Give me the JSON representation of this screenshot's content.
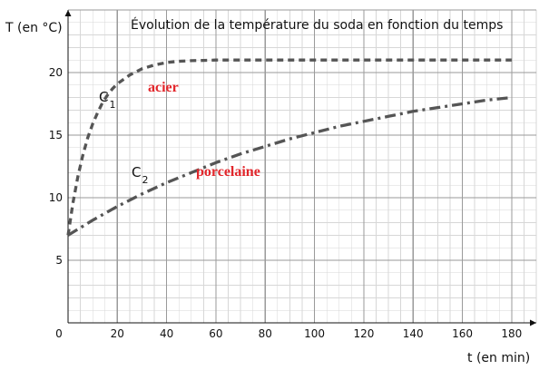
{
  "chart_data": {
    "type": "line",
    "title": "Évolution de la température du soda en fonction du temps",
    "xlabel": "t (en min)",
    "ylabel": "T (en °C)",
    "xlim": [
      0,
      190
    ],
    "ylim": [
      0,
      25
    ],
    "x_ticks": [
      0,
      20,
      40,
      60,
      80,
      100,
      120,
      140,
      160,
      180
    ],
    "y_ticks": [
      5,
      10,
      15,
      20
    ],
    "grid": true,
    "series": [
      {
        "curve_label": "C",
        "curve_subscript": "1",
        "material_label": "acier",
        "line_style": "dashed",
        "color": "#555555",
        "x": [
          0,
          2,
          4,
          6,
          8,
          10,
          12,
          14,
          16,
          18,
          20,
          25,
          30,
          35,
          40,
          45,
          50,
          55,
          60,
          70,
          80,
          90,
          100,
          120,
          140,
          160,
          180
        ],
        "y": [
          7.0,
          9.6,
          11.7,
          13.4,
          14.8,
          15.9,
          16.8,
          17.6,
          18.2,
          18.7,
          19.1,
          19.8,
          20.3,
          20.6,
          20.8,
          20.9,
          20.95,
          20.97,
          21.0,
          21.0,
          21.0,
          21.0,
          21.0,
          21.0,
          21.0,
          21.0,
          21.0
        ]
      },
      {
        "curve_label": "C",
        "curve_subscript": "2",
        "material_label": "porcelaine",
        "line_style": "dashdot",
        "color": "#555555",
        "x": [
          0,
          10,
          20,
          30,
          40,
          50,
          60,
          70,
          80,
          90,
          100,
          110,
          120,
          130,
          140,
          150,
          160,
          170,
          180
        ],
        "y": [
          7.0,
          8.2,
          9.3,
          10.3,
          11.2,
          12.0,
          12.8,
          13.5,
          14.1,
          14.7,
          15.2,
          15.7,
          16.1,
          16.5,
          16.9,
          17.2,
          17.5,
          17.8,
          18.0
        ]
      }
    ]
  }
}
